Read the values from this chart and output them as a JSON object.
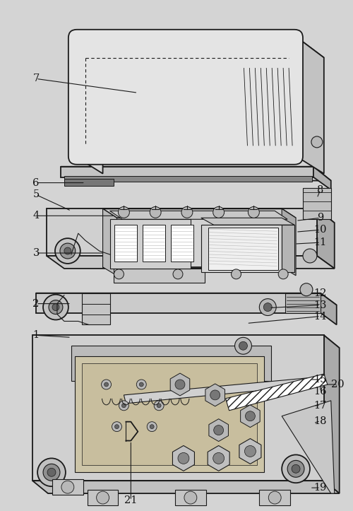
{
  "bg_color": "#d4d4d4",
  "fig_width": 5.0,
  "fig_height": 7.23,
  "dpi": 100,
  "line_color": "#1a1a1a",
  "label_color": "#111111",
  "label_fontsize": 10.5,
  "drawing_color": "#1a1a1a",
  "white": "#ffffff",
  "light_gray": "#e8e8e8",
  "mid_gray": "#b8b8b8",
  "dark_gray": "#666666",
  "cover_top": "#e6e6e6",
  "cover_side": "#c0c0c0",
  "cover_front": "#d8d8d8",
  "plate_top": "#d8d8d8",
  "plate_side": "#aaaaaa",
  "plate_front": "#c8c8c8"
}
